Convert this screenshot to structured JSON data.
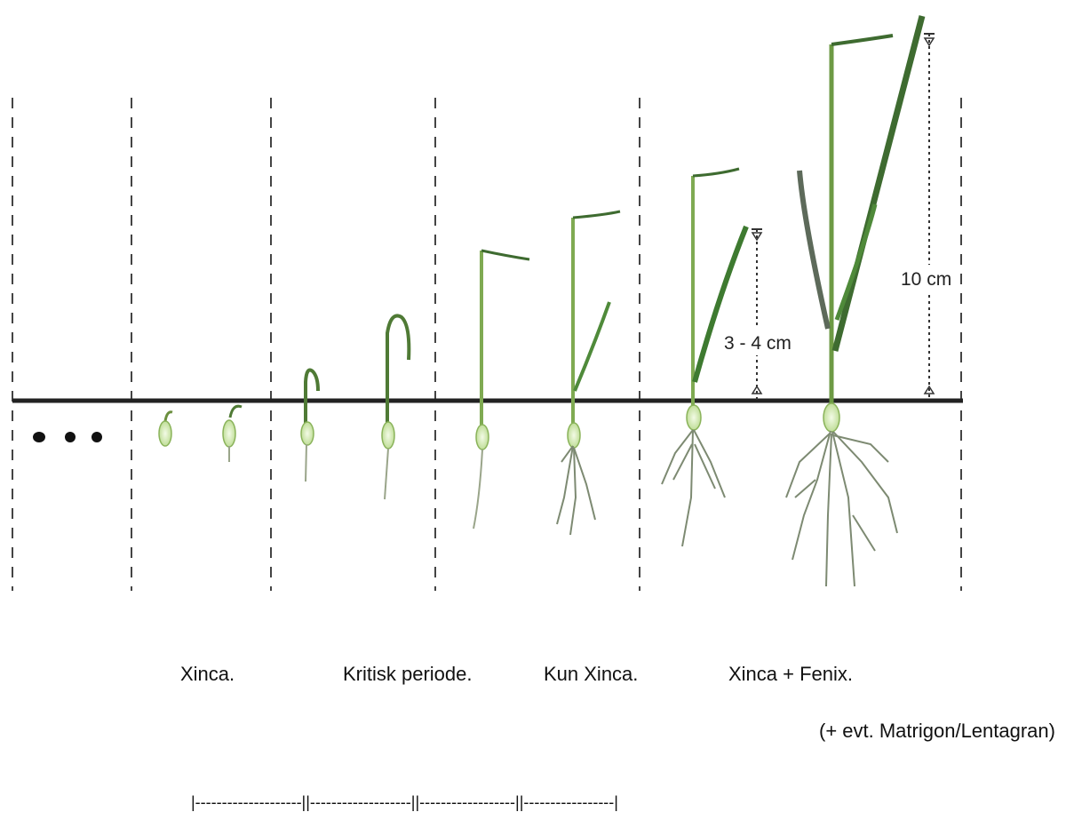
{
  "diagram": {
    "measurements": [
      {
        "label": "10 cm"
      },
      {
        "label": "3 - 4 cm"
      }
    ]
  },
  "labels": {
    "xinca": "Xinca.",
    "kritisk": "Kritisk periode.",
    "kun_xinca": "Kun Xinca.",
    "xinca_fenix": "Xinca + Fenix.",
    "evt": "(+ evt. Matrigon/Lentagran)"
  },
  "timeline": "|--------------------||-------------------||------------------||-----------------|",
  "colors": {
    "leaf_light": "#9cc66a",
    "leaf_dark": "#3e6b30",
    "leaf_grey": "#5d6a5a",
    "seed": "#d8ecb4",
    "soil_line": "#222222"
  }
}
